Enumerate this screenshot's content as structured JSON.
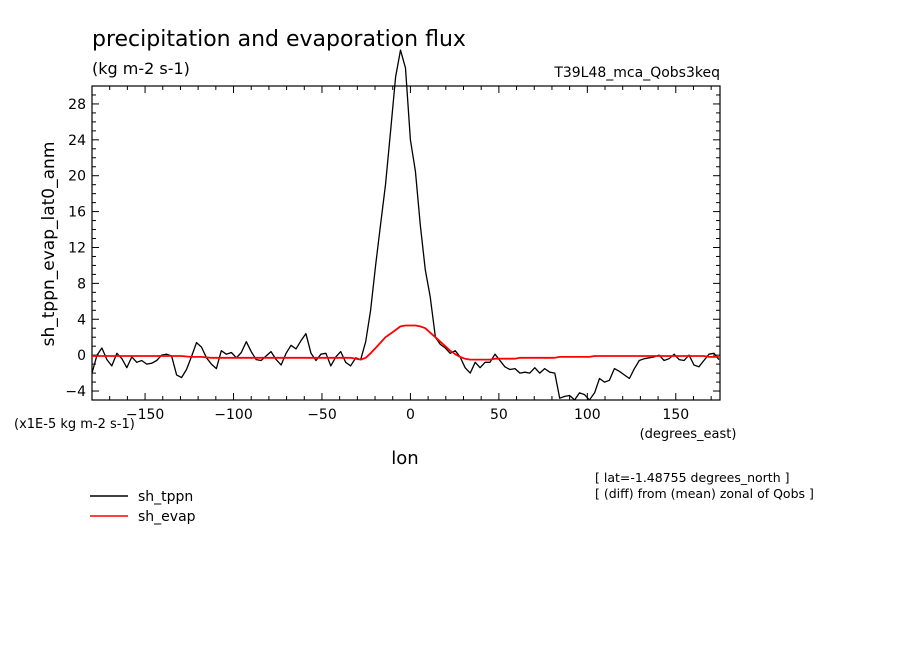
{
  "chart_data": {
    "type": "line",
    "title": "precipitation and evaporation flux",
    "subtitle": "(kg m-2 s-1)",
    "dataset_label": "T39L48_mca_Qobs3keq",
    "xlabel": "lon",
    "x_units": "(degrees_east)",
    "ylabel": "sh_tppn_evap_lat0_anm",
    "y_scale_note": "(x1E-5 kg m-2 s-1)",
    "xlim": [
      -180,
      175
    ],
    "ylim": [
      -5,
      30
    ],
    "x_ticks": [
      -150,
      -100,
      -50,
      0,
      50,
      100,
      150
    ],
    "y_ticks": [
      -4,
      0,
      4,
      8,
      12,
      16,
      20,
      24,
      28
    ],
    "grid": false,
    "legend_position": "bottom-left",
    "annotations": [
      "[ lat=-1.48755 degrees_north ]",
      "[ (diff) from (mean) zonal of Qobs ]"
    ],
    "x": [
      -180,
      -177.2,
      -174.4,
      -171.6,
      -168.8,
      -165.9,
      -163.1,
      -160.3,
      -157.5,
      -154.7,
      -151.9,
      -149.1,
      -146.2,
      -143.4,
      -140.6,
      -137.8,
      -135,
      -132.2,
      -129.4,
      -126.6,
      -123.8,
      -120.9,
      -118.1,
      -115.3,
      -112.5,
      -109.7,
      -106.9,
      -104.1,
      -101.2,
      -98.4,
      -95.6,
      -92.8,
      -90,
      -87.2,
      -84.4,
      -81.6,
      -78.8,
      -75.9,
      -73.1,
      -70.3,
      -67.5,
      -64.7,
      -61.9,
      -59.1,
      -56.2,
      -53.4,
      -50.6,
      -47.8,
      -45,
      -42.2,
      -39.4,
      -36.6,
      -33.8,
      -30.9,
      -28.1,
      -25.3,
      -22.5,
      -19.7,
      -16.9,
      -14.1,
      -11.2,
      -8.4,
      -5.6,
      -2.8,
      0,
      2.8,
      5.6,
      8.4,
      11.2,
      14.1,
      16.9,
      19.7,
      22.5,
      25.3,
      28.1,
      30.9,
      33.8,
      36.6,
      39.4,
      42.2,
      45,
      47.8,
      50.6,
      53.4,
      56.2,
      59.1,
      61.9,
      64.7,
      67.5,
      70.3,
      73.1,
      75.9,
      78.8,
      81.6,
      84.4,
      87.2,
      90,
      92.8,
      95.6,
      98.4,
      101.2,
      104.1,
      106.9,
      109.7,
      112.5,
      115.3,
      118.1,
      120.9,
      123.8,
      126.6,
      129.4,
      132.2,
      135,
      137.8,
      140.6,
      143.4,
      146.2,
      149.1,
      151.9,
      154.7,
      157.5,
      160.3,
      163.1,
      165.9,
      168.8,
      171.6,
      174.4
    ],
    "series": [
      {
        "name": "sh_tppn",
        "color": "#000000",
        "values": [
          -2,
          0,
          0.8,
          -0.5,
          -1.2,
          0.2,
          -0.4,
          -1.4,
          -0.2,
          -0.8,
          -0.6,
          -1.0,
          -0.9,
          -0.6,
          0.0,
          0.1,
          -0.1,
          -2.2,
          -2.5,
          -1.6,
          -0.2,
          1.4,
          0.9,
          -0.3,
          -1.0,
          -1.5,
          0.5,
          0.1,
          0.3,
          -0.3,
          0.3,
          1.5,
          0.4,
          -0.5,
          -0.6,
          -0.1,
          0.4,
          -0.5,
          -1.1,
          0.2,
          1.1,
          0.7,
          1.6,
          2.4,
          0.2,
          -0.6,
          0.1,
          0.2,
          -1.2,
          -0.2,
          0.4,
          -0.8,
          -1.2,
          -0.3,
          -0.5,
          1.5,
          5.0,
          10,
          14.5,
          19,
          25,
          31,
          34,
          32,
          24,
          20.5,
          14.5,
          9.5,
          6.5,
          2,
          1.2,
          0.8,
          0.2,
          0.5,
          -0.2,
          -1.4,
          -2.0,
          -0.8,
          -1.4,
          -0.8,
          -0.8,
          0.1,
          -0.6,
          -1.3,
          -1.6,
          -1.5,
          -2.0,
          -1.9,
          -2.0,
          -1.4,
          -2.0,
          -1.5,
          -1.9,
          -2.0,
          -4.8,
          -4.6,
          -4.5,
          -5.0,
          -4.2,
          -4.4,
          -5.0,
          -4.2,
          -2.6,
          -3.0,
          -2.8,
          -1.5,
          -1.8,
          -2.2,
          -2.6,
          -1.5,
          -0.6,
          -0.4,
          -0.3,
          -0.2,
          0.0,
          -0.6,
          -0.4,
          0.1,
          -0.5,
          -0.6,
          0.0,
          -1.1,
          -1.3,
          -0.6,
          0.1,
          0.2,
          -0.5
        ]
      },
      {
        "name": "sh_evap",
        "color": "#ff0000",
        "values": [
          -0.1,
          -0.1,
          -0.1,
          -0.1,
          -0.1,
          -0.1,
          -0.1,
          -0.1,
          -0.1,
          -0.1,
          -0.1,
          -0.1,
          -0.1,
          -0.1,
          -0.1,
          -0.1,
          -0.1,
          -0.1,
          -0.1,
          -0.15,
          -0.2,
          -0.2,
          -0.2,
          -0.25,
          -0.3,
          -0.3,
          -0.3,
          -0.3,
          -0.3,
          -0.3,
          -0.3,
          -0.3,
          -0.3,
          -0.3,
          -0.3,
          -0.3,
          -0.3,
          -0.3,
          -0.3,
          -0.3,
          -0.3,
          -0.3,
          -0.3,
          -0.3,
          -0.3,
          -0.3,
          -0.3,
          -0.3,
          -0.3,
          -0.3,
          -0.3,
          -0.3,
          -0.3,
          -0.4,
          -0.5,
          -0.3,
          0.2,
          0.8,
          1.4,
          2.0,
          2.4,
          2.8,
          3.2,
          3.3,
          3.3,
          3.3,
          3.2,
          3.0,
          2.5,
          2.0,
          1.5,
          1.0,
          0.5,
          0.1,
          -0.2,
          -0.4,
          -0.5,
          -0.5,
          -0.5,
          -0.5,
          -0.5,
          -0.4,
          -0.4,
          -0.4,
          -0.4,
          -0.4,
          -0.3,
          -0.3,
          -0.3,
          -0.3,
          -0.3,
          -0.3,
          -0.3,
          -0.3,
          -0.2,
          -0.2,
          -0.2,
          -0.2,
          -0.2,
          -0.2,
          -0.2,
          -0.1,
          -0.1,
          -0.1,
          -0.1,
          -0.1,
          -0.1,
          -0.1,
          -0.1,
          -0.1,
          -0.1,
          -0.1,
          -0.1,
          -0.1,
          -0.1,
          -0.1,
          -0.1,
          -0.1,
          -0.1,
          -0.1,
          -0.1,
          -0.1,
          -0.1,
          -0.1,
          -0.2,
          -0.2,
          -0.2
        ]
      }
    ]
  }
}
